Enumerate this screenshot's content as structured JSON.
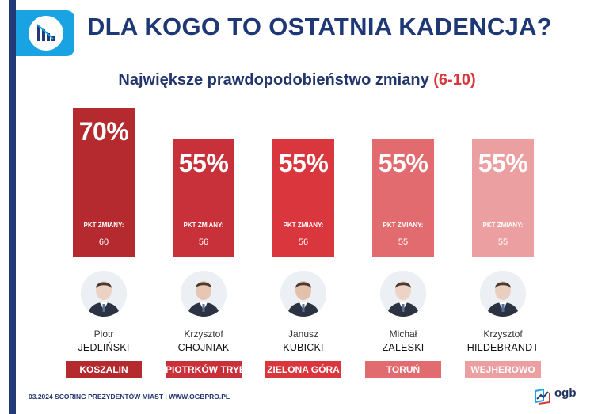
{
  "title": "DLA KOGO TO OSTATNIA KADENCJA?",
  "subtitle": {
    "text": "Największe prawdopodobieństwo zmiany",
    "range": "(6-10)"
  },
  "footer": "03.2024 SCORING PREZYDENTÓW MIAST | WWW.OGBPRO.PL",
  "brand": "ogb",
  "header_icon": "chart-down-icon",
  "chart_data": {
    "type": "bar",
    "title": "DLA KOGO TO OSTATNIA KADENCJA?",
    "subtitle": "Największe prawdopodobieństwo zmiany (6-10)",
    "ylim": [
      0,
      70
    ],
    "grid": false,
    "legend": "none",
    "point_label": "PKT ZMIANY:",
    "categories": [
      "KOSZALIN",
      "PIOTRKÓW TRYB.",
      "ZIELONA GÓRA",
      "TORUŃ",
      "WEJHEROWO"
    ],
    "values": [
      70,
      55,
      55,
      55,
      55
    ],
    "items": [
      {
        "first": "Piotr",
        "last": "JEDLIŃSKI",
        "city": "KOSZALIN",
        "percent": 70,
        "percent_label": "70%",
        "points": 60,
        "color": "#b52a2e",
        "tone": "#ead2c4"
      },
      {
        "first": "Krzysztof",
        "last": "CHOJNIAK",
        "city": "PIOTRKÓW TRYB.",
        "percent": 55,
        "percent_label": "55%",
        "points": 56,
        "color": "#c9313a",
        "tone": "#e7c7b4"
      },
      {
        "first": "Janusz",
        "last": "KUBICKI",
        "city": "ZIELONA GÓRA",
        "percent": 55,
        "percent_label": "55%",
        "points": 56,
        "color": "#d9373d",
        "tone": "#e3c0a9"
      },
      {
        "first": "Michał",
        "last": "ZALESKI",
        "city": "TORUŃ",
        "percent": 55,
        "percent_label": "55%",
        "points": 55,
        "color": "#e26b6f",
        "tone": "#ecd3c6"
      },
      {
        "first": "Krzysztof",
        "last": "HILDEBRANDT",
        "city": "WEJHEROWO",
        "percent": 55,
        "percent_label": "55%",
        "points": 55,
        "color": "#ec9fa1",
        "tone": "#e9cfbf"
      }
    ]
  }
}
